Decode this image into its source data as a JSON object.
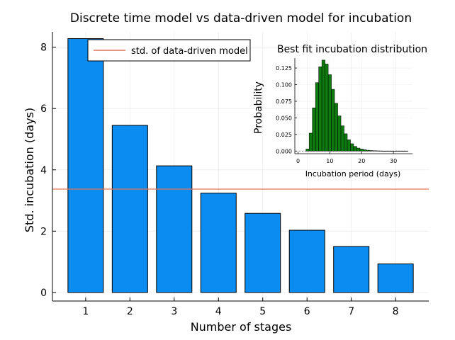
{
  "chart_data": [
    {
      "type": "bar",
      "title": "Discrete time model vs data-driven model for incubation",
      "xlabel": "Number of stages",
      "ylabel": "Std. incubation (days)",
      "categories": [
        "1",
        "2",
        "3",
        "4",
        "5",
        "6",
        "7",
        "8"
      ],
      "values": [
        8.28,
        5.45,
        4.13,
        3.24,
        2.58,
        2.03,
        1.5,
        0.93
      ],
      "bar_color": "#0a8cf0",
      "xlim": [
        0.25,
        8.75
      ],
      "ylim": [
        -0.28,
        8.5
      ],
      "yticks": [
        0,
        2,
        4,
        6,
        8
      ],
      "hline": {
        "name": "std. of data-driven model",
        "value": 3.37,
        "color": "#e2735a"
      },
      "legend": "top-left",
      "grid": true
    },
    {
      "type": "bar",
      "title": "Best fit incubation distribution",
      "xlabel": "Incubation period (days)",
      "ylabel": "Probability",
      "bin_width": 1,
      "x": [
        3,
        4,
        5,
        6,
        7,
        8,
        9,
        10,
        11,
        12,
        13,
        14,
        15,
        16,
        17,
        18,
        19,
        20,
        21,
        22,
        23,
        24,
        25,
        26,
        27,
        28,
        29,
        30,
        31,
        32,
        33,
        34
      ],
      "values": [
        0.003,
        0.027,
        0.065,
        0.103,
        0.127,
        0.137,
        0.131,
        0.115,
        0.093,
        0.072,
        0.053,
        0.038,
        0.026,
        0.017,
        0.011,
        0.007,
        0.0045,
        0.003,
        0.002,
        0.0012,
        0.0008,
        0.0005,
        0.0003,
        0.0002,
        0.0001,
        0.0001,
        0.0001,
        0.0001,
        0.0001,
        0.0001,
        0.0001,
        0.0001
      ],
      "bar_color": "#0f7a0f",
      "xlim": [
        -1,
        36
      ],
      "ylim": [
        -0.004,
        0.14
      ],
      "xticks": [
        0,
        10,
        20,
        30
      ],
      "yticks": [
        0,
        0.025,
        0.05,
        0.075,
        0.1,
        0.125
      ],
      "ytick_labels": [
        "0.000",
        "0.025",
        "0.050",
        "0.075",
        "0.100",
        "0.125"
      ],
      "grid": true
    }
  ]
}
